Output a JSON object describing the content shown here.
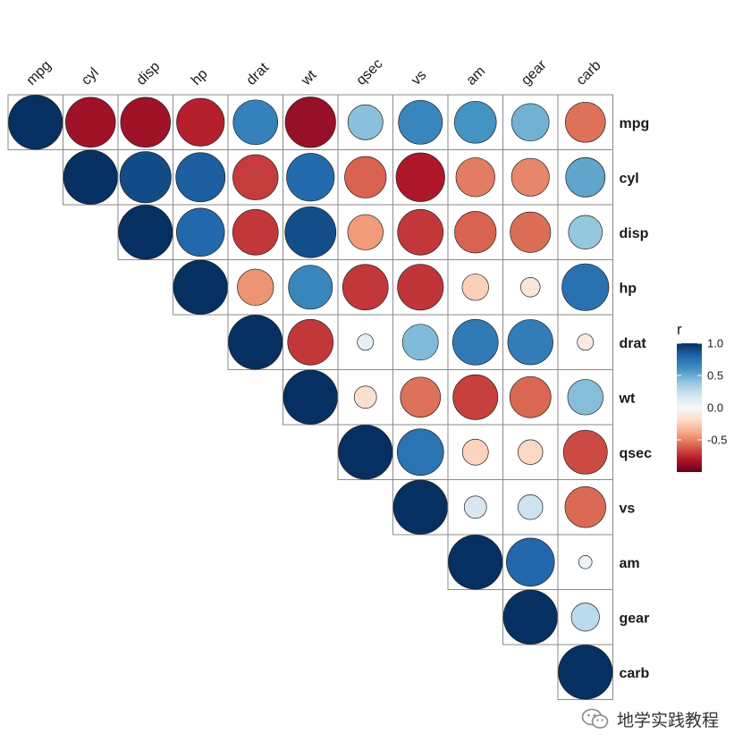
{
  "chart_data": {
    "type": "heatmap",
    "style": "circle correlation matrix, upper triangle",
    "variables": [
      "mpg",
      "cyl",
      "disp",
      "hp",
      "drat",
      "wt",
      "qsec",
      "vs",
      "am",
      "gear",
      "carb"
    ],
    "matrix": [
      [
        1.0,
        -0.85,
        -0.85,
        -0.78,
        0.68,
        -0.87,
        0.42,
        0.66,
        0.6,
        0.48,
        -0.55
      ],
      [
        -0.85,
        1.0,
        0.9,
        0.83,
        -0.7,
        0.78,
        -0.59,
        -0.81,
        -0.52,
        -0.49,
        0.53
      ],
      [
        -0.85,
        0.9,
        1.0,
        0.79,
        -0.71,
        0.89,
        -0.43,
        -0.71,
        -0.59,
        -0.56,
        0.39
      ],
      [
        -0.78,
        0.83,
        0.79,
        1.0,
        -0.45,
        0.66,
        -0.71,
        -0.72,
        -0.24,
        -0.13,
        0.75
      ],
      [
        0.68,
        -0.7,
        -0.71,
        -0.45,
        1.0,
        -0.71,
        0.09,
        0.44,
        0.71,
        0.7,
        -0.09
      ],
      [
        -0.87,
        0.78,
        0.89,
        0.66,
        -0.71,
        1.0,
        -0.17,
        -0.55,
        -0.69,
        -0.58,
        0.43
      ],
      [
        0.42,
        -0.59,
        -0.43,
        -0.71,
        0.09,
        -0.17,
        1.0,
        0.74,
        -0.23,
        -0.21,
        -0.66
      ],
      [
        0.66,
        -0.81,
        -0.71,
        -0.72,
        0.44,
        -0.55,
        0.74,
        1.0,
        0.17,
        0.21,
        -0.57
      ],
      [
        0.6,
        -0.52,
        -0.59,
        -0.24,
        0.71,
        -0.69,
        -0.23,
        0.17,
        1.0,
        0.79,
        0.06
      ],
      [
        0.48,
        -0.49,
        -0.56,
        -0.13,
        0.7,
        -0.58,
        -0.21,
        0.21,
        0.79,
        1.0,
        0.27
      ],
      [
        -0.55,
        0.53,
        0.39,
        0.75,
        -0.09,
        0.43,
        -0.66,
        -0.57,
        0.06,
        0.27,
        1.0
      ]
    ],
    "legend": {
      "title": "r",
      "ticks": [
        {
          "value": 1.0,
          "label": "1.0"
        },
        {
          "value": 0.5,
          "label": "0.5"
        },
        {
          "value": 0.0,
          "label": "0.0"
        },
        {
          "value": -0.5,
          "label": "-0.5"
        }
      ],
      "range": [
        -1,
        1
      ],
      "colors": {
        "low": "#b2182b",
        "mid": "#f7f7f7",
        "high": "#053061"
      }
    },
    "grid": true
  },
  "watermark": {
    "icon": "wechat-icon",
    "text": "地学实践教程"
  }
}
